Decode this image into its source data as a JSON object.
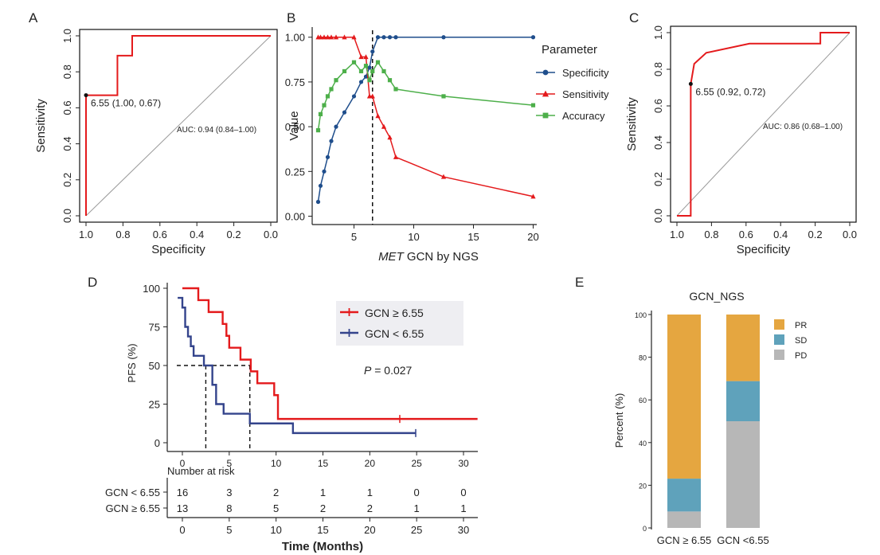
{
  "chart_data": [
    {
      "panel": "A",
      "type": "line",
      "subtype": "roc",
      "xlabel": "Specificity",
      "ylabel": "Sensitivity",
      "xlim": [
        1.0,
        0.0
      ],
      "ylim": [
        0.0,
        1.0
      ],
      "xticks": [
        "1.0",
        "0.8",
        "0.6",
        "0.4",
        "0.2",
        "0.0"
      ],
      "yticks": [
        "0.0",
        "0.2",
        "0.4",
        "0.6",
        "0.8",
        "1.0"
      ],
      "roc_points": [
        [
          1.0,
          0.0
        ],
        [
          1.0,
          0.67
        ],
        [
          0.83,
          0.67
        ],
        [
          0.83,
          0.89
        ],
        [
          0.75,
          0.89
        ],
        [
          0.75,
          1.0
        ],
        [
          0.0,
          1.0
        ]
      ],
      "cutoff_point": [
        1.0,
        0.67
      ],
      "cutoff_label": "6.55 (1.00, 0.67)",
      "auc_label": "AUC: 0.94 (0.84–1.00)",
      "color": "#e41a1c"
    },
    {
      "panel": "B",
      "type": "line",
      "xlabel_italic": "MET",
      "xlabel_rest": " GCN by NGS",
      "ylabel": "Value",
      "xlim": [
        1.5,
        20.3
      ],
      "ylim": [
        -0.02,
        1.03
      ],
      "xticks": [
        "5",
        "10",
        "15",
        "20"
      ],
      "yticks": [
        "0.00",
        "0.25",
        "0.50",
        "0.75",
        "1.00"
      ],
      "cutoff_x": 6.55,
      "legend_title": "Parameter",
      "series": [
        {
          "name": "Specificity",
          "color": "#1f4e8c",
          "marker": "circle",
          "x": [
            2,
            2.2,
            2.5,
            2.8,
            3.1,
            3.5,
            4.2,
            5,
            5.6,
            6,
            6.3,
            6.55,
            7,
            7.5,
            8,
            8.5,
            12.5,
            20
          ],
          "y": [
            0.08,
            0.17,
            0.25,
            0.33,
            0.42,
            0.5,
            0.58,
            0.67,
            0.75,
            0.78,
            0.83,
            0.92,
            1.0,
            1.0,
            1.0,
            1.0,
            1.0,
            1.0
          ]
        },
        {
          "name": "Sensitivity",
          "color": "#e41a1c",
          "marker": "triangle",
          "x": [
            2,
            2.2,
            2.5,
            2.8,
            3.1,
            3.5,
            4.2,
            5,
            5.6,
            6,
            6.3,
            6.55,
            7,
            7.5,
            8,
            8.5,
            12.5,
            20
          ],
          "y": [
            1.0,
            1.0,
            1.0,
            1.0,
            1.0,
            1.0,
            1.0,
            1.0,
            0.89,
            0.89,
            0.67,
            0.67,
            0.56,
            0.5,
            0.44,
            0.33,
            0.22,
            0.11
          ]
        },
        {
          "name": "Accuracy",
          "color": "#4daf4a",
          "marker": "square",
          "x": [
            2,
            2.2,
            2.5,
            2.8,
            3.1,
            3.5,
            4.2,
            5,
            5.6,
            6,
            6.3,
            6.55,
            7,
            7.5,
            8,
            8.5,
            12.5,
            20
          ],
          "y": [
            0.48,
            0.57,
            0.62,
            0.67,
            0.71,
            0.76,
            0.81,
            0.86,
            0.81,
            0.84,
            0.76,
            0.81,
            0.86,
            0.81,
            0.76,
            0.71,
            0.67,
            0.62
          ]
        }
      ]
    },
    {
      "panel": "C",
      "type": "line",
      "subtype": "roc",
      "xlabel": "Specificity",
      "ylabel": "Sensitivity",
      "xlim": [
        1.0,
        0.0
      ],
      "ylim": [
        0.0,
        1.0
      ],
      "xticks": [
        "1.0",
        "0.8",
        "0.6",
        "0.4",
        "0.2",
        "0.0"
      ],
      "yticks": [
        "0.0",
        "0.2",
        "0.4",
        "0.6",
        "0.8",
        "1.0"
      ],
      "roc_points": [
        [
          1.0,
          0.0
        ],
        [
          0.92,
          0.0
        ],
        [
          0.92,
          0.72
        ],
        [
          0.9,
          0.83
        ],
        [
          0.83,
          0.89
        ],
        [
          0.58,
          0.94
        ],
        [
          0.17,
          0.94
        ],
        [
          0.17,
          1.0
        ],
        [
          0.0,
          1.0
        ]
      ],
      "cutoff_point": [
        0.92,
        0.72
      ],
      "cutoff_label": "6.55 (0.92, 0.72)",
      "auc_label": "AUC: 0.86 (0.68–1.00)",
      "color": "#e41a1c"
    },
    {
      "panel": "D",
      "type": "line",
      "subtype": "kaplan-meier",
      "xlabel": "Time (Months)",
      "ylabel": "PFS (%)",
      "xlim": [
        -2,
        31.5
      ],
      "ylim": [
        0,
        100
      ],
      "xticks": [
        "0",
        "5",
        "10",
        "15",
        "20",
        "25",
        "30"
      ],
      "yticks": [
        "0",
        "25",
        "50",
        "75",
        "100"
      ],
      "p_label_italic": "P",
      "p_label_rest": " = 0.027",
      "median_lines": [
        2.5,
        7.2
      ],
      "risk_table_title": "Number at risk",
      "series": [
        {
          "name": "GCN ≥ 6.55",
          "color": "#e41a1c",
          "times": [
            0,
            1.7,
            2.8,
            4.3,
            4.7,
            5.0,
            6.2,
            7.3,
            8.0,
            9.8,
            10.2,
            31.5
          ],
          "surv": [
            100,
            92.3,
            84.6,
            76.9,
            69.2,
            61.5,
            53.8,
            46.2,
            38.5,
            30.8,
            15.4,
            15.4
          ],
          "censor": [
            [
              23.2,
              15.4
            ]
          ],
          "risk_label": "GCN ≥ 6.55",
          "risk": [
            "13",
            "8",
            "5",
            "2",
            "2",
            "1",
            "1"
          ]
        },
        {
          "name": "GCN < 6.55",
          "color": "#34448c",
          "times": [
            -0.5,
            0,
            0.3,
            0.6,
            0.9,
            1.2,
            2.3,
            3.2,
            3.6,
            4.4,
            7.2,
            11.8,
            24.9
          ],
          "surv": [
            93.8,
            87.5,
            75,
            68.8,
            62.5,
            56.3,
            50,
            37.5,
            25,
            18.8,
            12.5,
            6.25,
            6.25
          ],
          "censor": [
            [
              24.9,
              6.25
            ]
          ],
          "risk_label": "GCN < 6.55",
          "risk": [
            "16",
            "3",
            "2",
            "1",
            "1",
            "0",
            "0"
          ]
        }
      ]
    },
    {
      "panel": "E",
      "type": "bar",
      "subtype": "stacked",
      "title": "GCN_NGS",
      "ylabel": "Percent (%)",
      "ylim": [
        0,
        100
      ],
      "yticks": [
        "0",
        "20",
        "40",
        "60",
        "80",
        "100"
      ],
      "categories": [
        "GCN ≥ 6.55",
        "GCN <6.55"
      ],
      "series": [
        {
          "name": "PD",
          "color": "#b7b7b7",
          "values": [
            7.7,
            50.0
          ]
        },
        {
          "name": "SD",
          "color": "#5fa2bb",
          "values": [
            15.4,
            18.8
          ]
        },
        {
          "name": "PR",
          "color": "#e5a640",
          "values": [
            76.9,
            31.2
          ]
        }
      ],
      "legend_order": [
        "PR",
        "SD",
        "PD"
      ]
    }
  ]
}
